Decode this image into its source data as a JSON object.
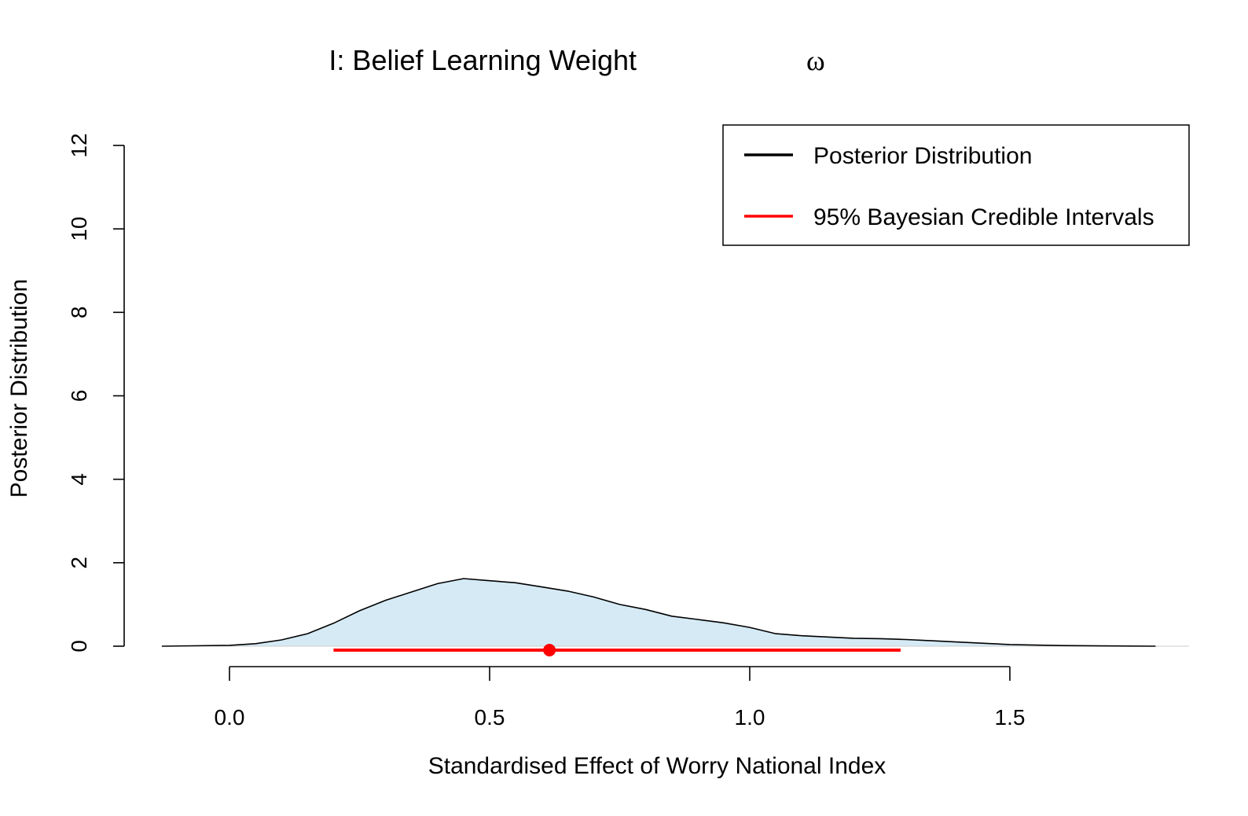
{
  "chart_data": {
    "type": "area",
    "title": "I: Belief Learning Weight",
    "title_symbol": "ω",
    "xlabel": "Standardised Effect of Worry National Index",
    "ylabel": "Posterior Distribution",
    "xlim": [
      -0.2,
      1.86
    ],
    "ylim": [
      0,
      12
    ],
    "x_ticks": [
      0.0,
      0.5,
      1.0,
      1.5
    ],
    "x_tick_labels": [
      "0.0",
      "0.5",
      "1.0",
      "1.5"
    ],
    "y_ticks": [
      0,
      2,
      4,
      6,
      8,
      10,
      12
    ],
    "y_tick_labels": [
      "0",
      "2",
      "4",
      "6",
      "8",
      "10",
      "12"
    ],
    "x_axis_range": [
      0.0,
      1.5
    ],
    "grid": false,
    "legend_position": "top-right",
    "colors": {
      "density_fill": "#d5eaf5",
      "density_line": "#000000",
      "interval": "#ff0000",
      "baseline": "#cccccc"
    },
    "series": [
      {
        "name": "Posterior Distribution",
        "x": [
          -0.13,
          0.0,
          0.05,
          0.1,
          0.15,
          0.2,
          0.25,
          0.3,
          0.35,
          0.4,
          0.45,
          0.5,
          0.55,
          0.6,
          0.65,
          0.7,
          0.75,
          0.8,
          0.85,
          0.9,
          0.95,
          1.0,
          1.05,
          1.1,
          1.15,
          1.2,
          1.25,
          1.3,
          1.35,
          1.4,
          1.45,
          1.5,
          1.6,
          1.7,
          1.78
        ],
        "y": [
          0.0,
          0.02,
          0.06,
          0.15,
          0.3,
          0.55,
          0.85,
          1.1,
          1.3,
          1.5,
          1.62,
          1.57,
          1.52,
          1.42,
          1.32,
          1.18,
          1.0,
          0.88,
          0.72,
          0.64,
          0.56,
          0.45,
          0.3,
          0.25,
          0.22,
          0.19,
          0.18,
          0.16,
          0.13,
          0.1,
          0.07,
          0.04,
          0.015,
          0.005,
          0.0
        ]
      }
    ],
    "interval": {
      "name": "95% Bayesian Credible Intervals",
      "lower": 0.2,
      "upper": 1.29,
      "point": 0.615
    },
    "legend": [
      {
        "label": "Posterior Distribution",
        "color": "#000000"
      },
      {
        "label": "95% Bayesian Credible Intervals",
        "color": "#ff0000"
      }
    ]
  }
}
